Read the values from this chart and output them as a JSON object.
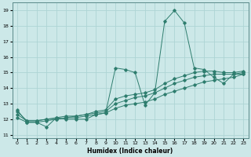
{
  "xlabel": "Humidex (Indice chaleur)",
  "ylabel": "",
  "bg_color": "#cce8e8",
  "line_color": "#2e7d6e",
  "grid_color": "#aed4d4",
  "xlim": [
    -0.5,
    23.5
  ],
  "ylim": [
    10.8,
    19.5
  ],
  "xticks": [
    0,
    1,
    2,
    3,
    4,
    5,
    6,
    7,
    8,
    9,
    10,
    11,
    12,
    13,
    14,
    15,
    16,
    17,
    18,
    19,
    20,
    21,
    22,
    23
  ],
  "yticks": [
    11,
    12,
    13,
    14,
    15,
    16,
    17,
    18,
    19
  ],
  "series1_x": [
    0,
    1,
    2,
    3,
    4,
    5,
    6,
    7,
    8,
    9,
    10,
    11,
    12,
    13,
    14,
    15,
    16,
    17,
    18,
    19,
    20,
    21,
    22,
    23
  ],
  "series1_y": [
    12.6,
    11.8,
    11.8,
    11.5,
    12.1,
    12.0,
    12.0,
    12.0,
    12.3,
    12.4,
    15.3,
    15.2,
    15.0,
    12.9,
    13.7,
    18.3,
    19.0,
    18.2,
    15.3,
    15.2,
    14.7,
    14.3,
    14.9,
    14.9
  ],
  "series2_x": [
    0,
    1,
    2,
    3,
    4,
    5,
    6,
    7,
    8,
    9,
    10,
    11,
    12,
    13,
    14,
    15,
    16,
    17,
    18,
    19,
    20,
    21,
    22,
    23
  ],
  "series2_y": [
    12.1,
    11.8,
    11.8,
    11.9,
    12.0,
    12.1,
    12.1,
    12.2,
    12.3,
    12.4,
    12.7,
    12.9,
    13.0,
    13.1,
    13.3,
    13.6,
    13.8,
    14.0,
    14.2,
    14.4,
    14.5,
    14.6,
    14.7,
    14.9
  ],
  "series3_x": [
    0,
    1,
    2,
    3,
    4,
    5,
    6,
    7,
    8,
    9,
    10,
    11,
    12,
    13,
    14,
    15,
    16,
    17,
    18,
    19,
    20,
    21,
    22,
    23
  ],
  "series3_y": [
    12.3,
    11.9,
    11.9,
    12.0,
    12.0,
    12.1,
    12.2,
    12.3,
    12.4,
    12.5,
    13.0,
    13.2,
    13.4,
    13.5,
    13.7,
    14.0,
    14.3,
    14.5,
    14.7,
    14.8,
    14.9,
    14.9,
    14.9,
    15.0
  ],
  "series4_x": [
    0,
    1,
    2,
    3,
    4,
    5,
    6,
    7,
    8,
    9,
    10,
    11,
    12,
    13,
    14,
    15,
    16,
    17,
    18,
    19,
    20,
    21,
    22,
    23
  ],
  "series4_y": [
    12.5,
    11.9,
    11.9,
    12.0,
    12.1,
    12.2,
    12.2,
    12.3,
    12.5,
    12.6,
    13.3,
    13.5,
    13.6,
    13.7,
    13.9,
    14.3,
    14.6,
    14.8,
    15.0,
    15.1,
    15.1,
    15.0,
    15.0,
    15.1
  ]
}
